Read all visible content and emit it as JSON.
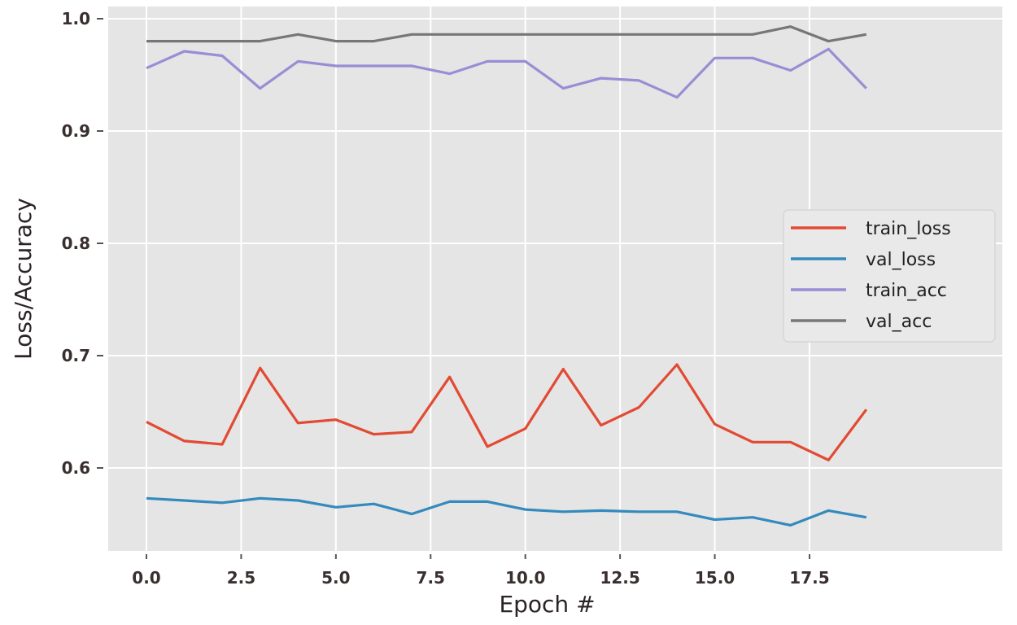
{
  "chart_data": {
    "type": "line",
    "title": "",
    "xlabel": "Epoch #",
    "ylabel": "Loss/Accuracy",
    "xlim": [
      -1.0,
      20.0
    ],
    "ylim": [
      0.525,
      1.005
    ],
    "x_ticks": [
      0.0,
      2.5,
      5.0,
      7.5,
      10.0,
      12.5,
      15.0,
      17.5
    ],
    "x_tick_labels": [
      "0.0",
      "2.5",
      "5.0",
      "7.5",
      "10.0",
      "12.5",
      "15.0",
      "17.5"
    ],
    "y_ticks": [
      0.6,
      0.7,
      0.8,
      0.9,
      1.0
    ],
    "y_tick_labels": [
      "0.6",
      "0.7",
      "0.8",
      "0.9",
      "1.0"
    ],
    "grid": true,
    "legend_position": "center right",
    "x": [
      0,
      1,
      2,
      3,
      4,
      5,
      6,
      7,
      8,
      9,
      10,
      11,
      12,
      13,
      14,
      15,
      16,
      17,
      18,
      19
    ],
    "series": [
      {
        "name": "train_loss",
        "color": "#e24a33",
        "values": [
          0.641,
          0.624,
          0.621,
          0.689,
          0.64,
          0.643,
          0.63,
          0.632,
          0.681,
          0.619,
          0.635,
          0.688,
          0.638,
          0.654,
          0.692,
          0.639,
          0.623,
          0.623,
          0.607,
          0.652
        ]
      },
      {
        "name": "val_loss",
        "color": "#348abd",
        "values": [
          0.573,
          0.571,
          0.569,
          0.573,
          0.571,
          0.565,
          0.568,
          0.559,
          0.57,
          0.57,
          0.563,
          0.561,
          0.562,
          0.561,
          0.561,
          0.554,
          0.556,
          0.549,
          0.562,
          0.556
        ]
      },
      {
        "name": "train_acc",
        "color": "#988ed5",
        "values": [
          0.956,
          0.971,
          0.967,
          0.938,
          0.962,
          0.958,
          0.958,
          0.958,
          0.951,
          0.962,
          0.962,
          0.938,
          0.947,
          0.945,
          0.93,
          0.965,
          0.965,
          0.954,
          0.973,
          0.938
        ]
      },
      {
        "name": "val_acc",
        "color": "#777777",
        "values": [
          0.98,
          0.98,
          0.98,
          0.98,
          0.986,
          0.98,
          0.98,
          0.986,
          0.986,
          0.986,
          0.986,
          0.986,
          0.986,
          0.986,
          0.986,
          0.986,
          0.986,
          0.993,
          0.98,
          0.986
        ]
      }
    ]
  },
  "style": {
    "plot_bg": "#e5e5e5",
    "grid_color": "#ffffff",
    "tick_color": "#555555"
  }
}
